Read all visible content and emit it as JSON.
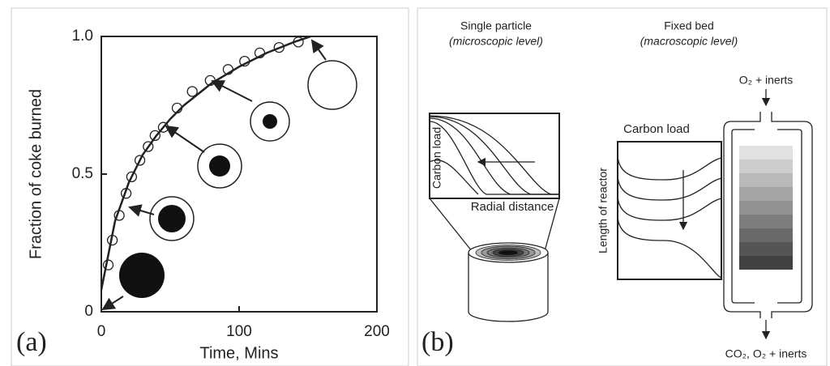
{
  "chart_data": {
    "type": "scatter",
    "xlabel": "Time, Mins",
    "ylabel": "Fraction of coke burned",
    "panel_label": "(a)",
    "xlim": [
      0,
      200
    ],
    "xticks": [
      0,
      100,
      200
    ],
    "ylim": [
      0,
      1
    ],
    "yticks": [
      0,
      0.5,
      {
        "value": 1,
        "label": "1.0"
      }
    ],
    "series": [
      {
        "type": "scatter",
        "color": "#222222",
        "x": [
          5,
          8,
          13,
          18,
          22,
          28,
          34,
          39,
          45,
          55,
          66,
          79,
          92,
          104,
          115,
          129,
          143
        ],
        "values": [
          0.17,
          0.26,
          0.35,
          0.43,
          0.49,
          0.55,
          0.6,
          0.64,
          0.67,
          0.74,
          0.8,
          0.84,
          0.88,
          0.91,
          0.94,
          0.96,
          0.98
        ]
      },
      {
        "type": "line",
        "color": "#222222",
        "x": [
          0,
          10,
          20,
          30,
          40,
          50,
          60,
          80,
          100,
          120,
          140,
          152
        ],
        "values": [
          0.08,
          0.33,
          0.47,
          0.57,
          0.64,
          0.7,
          0.75,
          0.83,
          0.89,
          0.94,
          0.98,
          1.0
        ]
      }
    ]
  },
  "panel_b": {
    "panel_label": "(b)",
    "single_title": "Single particle",
    "single_subtitle": "(microscopic level)",
    "bed_title": "Fixed bed",
    "bed_subtitle": "(macroscopic level)",
    "inlet": "O₂ + inerts",
    "outlet": "CO₂, O₂ + inerts",
    "particle_ylabel": "Carbon load",
    "particle_xlabel": "Radial distance",
    "bed_xlabel": "Carbon load",
    "bed_ylabel": "Length of reactor"
  }
}
